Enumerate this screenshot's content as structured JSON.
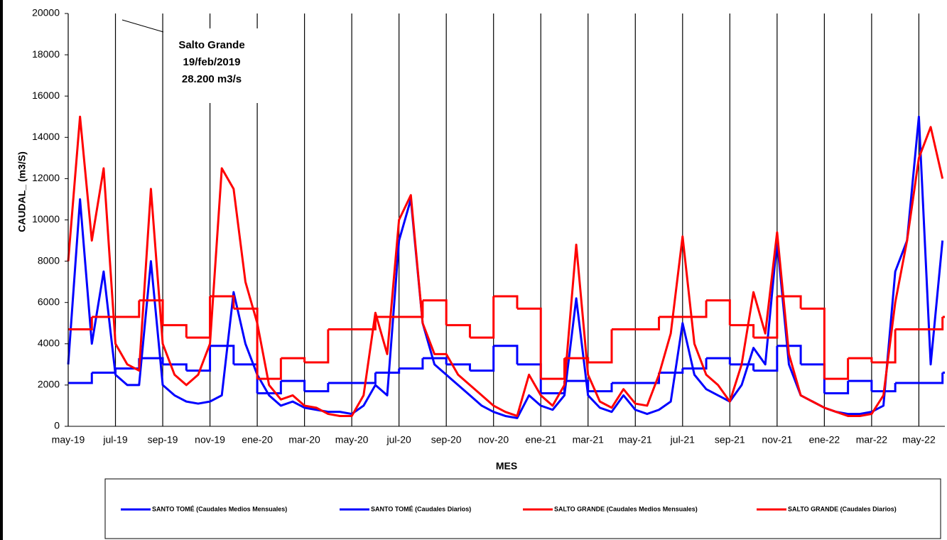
{
  "chart_data": {
    "type": "line",
    "y_label": "CAUDAL_ (m3/S)",
    "x_label": "MES",
    "annotation": [
      "Salto Grande",
      "19/feb/2019",
      "28.200  m3/s"
    ],
    "xlim": [
      0,
      37.1
    ],
    "ylim": [
      0,
      20000
    ],
    "yticks": [
      0,
      2000,
      4000,
      6000,
      8000,
      10000,
      12000,
      14000,
      16000,
      18000,
      20000
    ],
    "xticks": [
      {
        "value": 0,
        "label": "may-19"
      },
      {
        "value": 2,
        "label": "jul-19"
      },
      {
        "value": 4,
        "label": "sep-19"
      },
      {
        "value": 6,
        "label": "nov-19"
      },
      {
        "value": 8,
        "label": "ene-20"
      },
      {
        "value": 10,
        "label": "mar-20"
      },
      {
        "value": 12,
        "label": "may-20"
      },
      {
        "value": 14,
        "label": "jul-20"
      },
      {
        "value": 16,
        "label": "sep-20"
      },
      {
        "value": 18,
        "label": "nov-20"
      },
      {
        "value": 20,
        "label": "ene-21"
      },
      {
        "value": 22,
        "label": "mar-21"
      },
      {
        "value": 24,
        "label": "may-21"
      },
      {
        "value": 26,
        "label": "jul-21"
      },
      {
        "value": 28,
        "label": "sep-21"
      },
      {
        "value": 30,
        "label": "nov-21"
      },
      {
        "value": 32,
        "label": "ene-22"
      },
      {
        "value": 34,
        "label": "mar-22"
      },
      {
        "value": 36,
        "label": "may-22"
      }
    ],
    "series": [
      {
        "name": "SANTO TOMÉ (Caudales Medios Mensuales)",
        "color": "#0000ff",
        "step": true,
        "x": [
          0,
          1,
          2,
          3,
          4,
          5,
          6,
          7,
          8,
          9,
          10,
          11,
          12,
          13,
          14,
          15,
          16,
          17,
          18,
          19,
          20,
          21,
          22,
          23,
          24,
          25,
          26,
          27,
          28,
          29,
          30,
          31,
          32,
          33,
          34,
          35,
          36,
          37
        ],
        "values": [
          2100,
          2600,
          2800,
          3300,
          3000,
          2700,
          3900,
          3000,
          1600,
          2200,
          1700,
          2100,
          2100,
          2600,
          2800,
          3300,
          3000,
          2700,
          3900,
          3000,
          1600,
          2200,
          1700,
          2100,
          2100,
          2600,
          2800,
          3300,
          3000,
          2700,
          3900,
          3000,
          1600,
          2200,
          1700,
          2100,
          2100,
          2600
        ]
      },
      {
        "name": "SANTO TOMÉ (Caudales Diarios)",
        "color": "#0000ff",
        "x": [
          0,
          0.5,
          1,
          1.5,
          2,
          2.5,
          3,
          3.5,
          4,
          4.5,
          5,
          5.5,
          6,
          6.5,
          7,
          7.5,
          8,
          8.5,
          9,
          9.5,
          10,
          10.5,
          11,
          11.5,
          12,
          12.5,
          13,
          13.5,
          14,
          14.5,
          15,
          15.5,
          16,
          16.5,
          17,
          17.5,
          18,
          18.5,
          19,
          19.5,
          20,
          20.5,
          21,
          21.5,
          22,
          22.5,
          23,
          23.5,
          24,
          24.5,
          25,
          25.5,
          26,
          26.5,
          27,
          27.5,
          28,
          28.5,
          29,
          29.5,
          30,
          30.5,
          31,
          31.5,
          32,
          32.5,
          33,
          33.5,
          34,
          34.5,
          35,
          35.5,
          36,
          36.5,
          37
        ],
        "values": [
          3000,
          11000,
          4000,
          7500,
          2500,
          2000,
          2000,
          8000,
          2000,
          1500,
          1200,
          1100,
          1200,
          1500,
          6500,
          4000,
          2500,
          1500,
          1000,
          1200,
          900,
          800,
          700,
          700,
          600,
          1000,
          2000,
          1500,
          9000,
          11000,
          5000,
          3000,
          2500,
          2000,
          1500,
          1000,
          700,
          500,
          400,
          1500,
          1000,
          800,
          1500,
          6200,
          1500,
          900,
          700,
          1500,
          800,
          600,
          800,
          1200,
          5000,
          2500,
          1800,
          1500,
          1200,
          2000,
          3800,
          3000,
          9000,
          3000,
          1500,
          1200,
          900,
          700,
          600,
          600,
          700,
          1000,
          7500,
          9000,
          15000,
          3000,
          9000
        ]
      },
      {
        "name": "SALTO GRANDE (Caudales Medios Mensuales)",
        "color": "#ff0000",
        "step": true,
        "x": [
          0,
          1,
          2,
          3,
          4,
          5,
          6,
          7,
          8,
          9,
          10,
          11,
          12,
          13,
          14,
          15,
          16,
          17,
          18,
          19,
          20,
          21,
          22,
          23,
          24,
          25,
          26,
          27,
          28,
          29,
          30,
          31,
          32,
          33,
          34,
          35,
          36,
          37
        ],
        "values": [
          4700,
          5300,
          5300,
          6100,
          4900,
          4300,
          6300,
          5700,
          2300,
          3300,
          3100,
          4700,
          4700,
          5300,
          5300,
          6100,
          4900,
          4300,
          6300,
          5700,
          2300,
          3300,
          3100,
          4700,
          4700,
          5300,
          5300,
          6100,
          4900,
          4300,
          6300,
          5700,
          2300,
          3300,
          3100,
          4700,
          4700,
          5300
        ]
      },
      {
        "name": "SALTO GRANDE (Caudales Diarios)",
        "color": "#ff0000",
        "x": [
          0,
          0.5,
          1,
          1.5,
          2,
          2.5,
          3,
          3.5,
          4,
          4.5,
          5,
          5.5,
          6,
          6.5,
          7,
          7.5,
          8,
          8.5,
          9,
          9.5,
          10,
          10.5,
          11,
          11.5,
          12,
          12.5,
          13,
          13.5,
          14,
          14.5,
          15,
          15.5,
          16,
          16.5,
          17,
          17.5,
          18,
          18.5,
          19,
          19.5,
          20,
          20.5,
          21,
          21.5,
          22,
          22.5,
          23,
          23.5,
          24,
          24.5,
          25,
          25.5,
          26,
          26.5,
          27,
          27.5,
          28,
          28.5,
          29,
          29.5,
          30,
          30.5,
          31,
          31.5,
          32,
          32.5,
          33,
          33.5,
          34,
          34.5,
          35,
          35.5,
          36,
          36.5,
          37
        ],
        "values": [
          8000,
          15000,
          9000,
          12500,
          4000,
          3000,
          2700,
          11500,
          4000,
          2500,
          2000,
          2500,
          4000,
          12500,
          11500,
          7000,
          5000,
          2000,
          1300,
          1500,
          1000,
          900,
          600,
          500,
          500,
          1500,
          5500,
          3500,
          10000,
          11200,
          5000,
          3500,
          3500,
          2500,
          2000,
          1500,
          1000,
          700,
          500,
          2500,
          1500,
          1000,
          2000,
          8800,
          2500,
          1200,
          900,
          1800,
          1100,
          1000,
          2500,
          4500,
          9200,
          4000,
          2500,
          2000,
          1200,
          3000,
          6500,
          4500,
          9400,
          3500,
          1500,
          1200,
          900,
          700,
          500,
          500,
          600,
          1500,
          6000,
          9000,
          13000,
          14500,
          12000
        ]
      }
    ]
  }
}
